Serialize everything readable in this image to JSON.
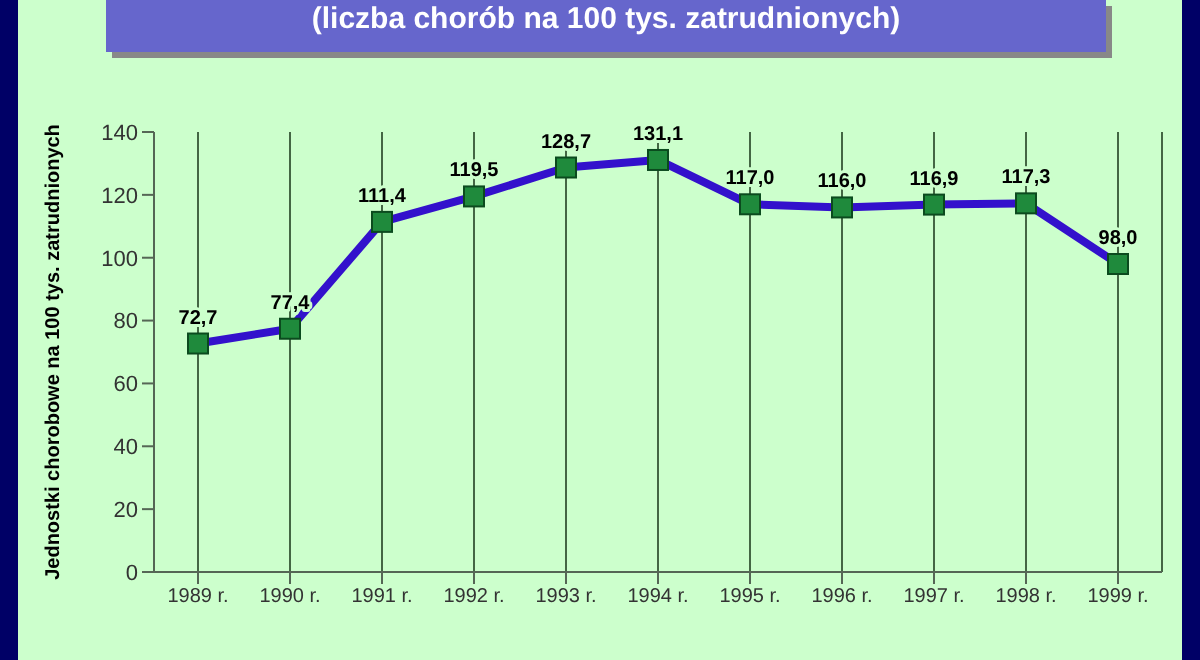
{
  "chart_data": {
    "type": "line",
    "title": "(liczba chorób na 100 tys. zatrudnionych)",
    "ylabel": "Jednostki chorobowe na 100 tys. zatrudnionych",
    "categories": [
      "1989 r.",
      "1990 r.",
      "1991 r.",
      "1992 r.",
      "1993 r.",
      "1994 r.",
      "1995 r.",
      "1996 r.",
      "1997 r.",
      "1998 r.",
      "1999 r."
    ],
    "series": [
      {
        "color": "#3311cc",
        "values": [
          72.7,
          77.4,
          111.4,
          119.5,
          128.7,
          131.1,
          117.0,
          116.0,
          116.9,
          117.3,
          98.0
        ]
      }
    ],
    "value_labels": [
      "72,7",
      "77,4",
      "111,4",
      "119,5",
      "128,7",
      "131,1",
      "117,0",
      "116,0",
      "116,9",
      "117,3",
      "98,0"
    ],
    "ylim": [
      0,
      140
    ],
    "yticks": [
      0,
      20,
      40,
      60,
      80,
      100,
      120,
      140
    ],
    "grid": "x",
    "marker": "square",
    "line_style": "solid",
    "legend": false
  }
}
